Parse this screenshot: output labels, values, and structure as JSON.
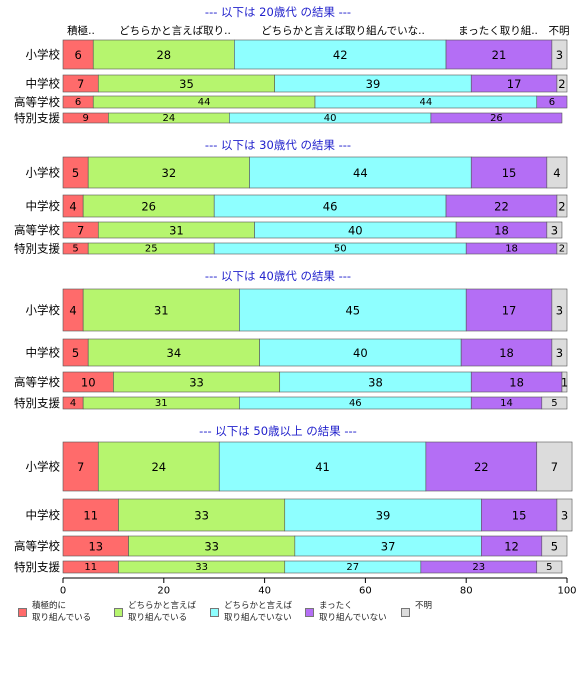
{
  "chart_data": {
    "type": "bar",
    "orientation": "horizontal",
    "stacked": true,
    "xlim": [
      0,
      100
    ],
    "x_ticks": [
      "0",
      "20",
      "40",
      "60",
      "80",
      "100"
    ],
    "top_header": [
      "積極..",
      "どちらかと言えば取り..",
      "どちらかと言えば取り組んでいな..",
      "まったく取り組..",
      "不明"
    ],
    "series": [
      {
        "name": "積極的に\n取り組んでいる",
        "color": "#ff6b6b"
      },
      {
        "name": "どちらかと言えば\n取り組んでいる",
        "color": "#b6f56e"
      },
      {
        "name": "どちらかと言えば\n取り組んでいない",
        "color": "#8effff"
      },
      {
        "name": "まったく\n取り組んでいない",
        "color": "#b46ef5"
      },
      {
        "name": "不明",
        "color": "#dcdcdc"
      }
    ],
    "panels": [
      {
        "title": "--- 以下は 20歳代 の結果 ---",
        "rows": [
          {
            "label": "小学校",
            "values": [
              6,
              28,
              42,
              21,
              3
            ]
          },
          {
            "label": "中学校",
            "values": [
              7,
              35,
              39,
              17,
              2
            ]
          },
          {
            "label": "高等学校",
            "values": [
              6,
              44,
              44,
              6,
              0
            ]
          },
          {
            "label": "特別支援",
            "values": [
              9,
              24,
              40,
              26,
              0
            ]
          }
        ]
      },
      {
        "title": "--- 以下は 30歳代 の結果 ---",
        "rows": [
          {
            "label": "小学校",
            "values": [
              5,
              32,
              44,
              15,
              4
            ]
          },
          {
            "label": "中学校",
            "values": [
              4,
              26,
              46,
              22,
              2
            ]
          },
          {
            "label": "高等学校",
            "values": [
              7,
              31,
              40,
              18,
              3
            ]
          },
          {
            "label": "特別支援",
            "values": [
              5,
              25,
              50,
              18,
              2
            ]
          }
        ]
      },
      {
        "title": "--- 以下は 40歳代 の結果 ---",
        "rows": [
          {
            "label": "小学校",
            "values": [
              4,
              31,
              45,
              17,
              3
            ]
          },
          {
            "label": "中学校",
            "values": [
              5,
              34,
              40,
              18,
              3
            ]
          },
          {
            "label": "高等学校",
            "values": [
              10,
              33,
              38,
              18,
              1
            ]
          },
          {
            "label": "特別支援",
            "values": [
              4,
              31,
              46,
              14,
              5
            ]
          }
        ]
      },
      {
        "title": "--- 以下は 50歳以上 の結果 ---",
        "rows": [
          {
            "label": "小学校",
            "values": [
              7,
              24,
              41,
              22,
              7
            ]
          },
          {
            "label": "中学校",
            "values": [
              11,
              33,
              39,
              15,
              3
            ]
          },
          {
            "label": "高等学校",
            "values": [
              13,
              33,
              37,
              12,
              5
            ]
          },
          {
            "label": "特別支援",
            "values": [
              11,
              33,
              27,
              23,
              5
            ]
          }
        ]
      }
    ]
  }
}
